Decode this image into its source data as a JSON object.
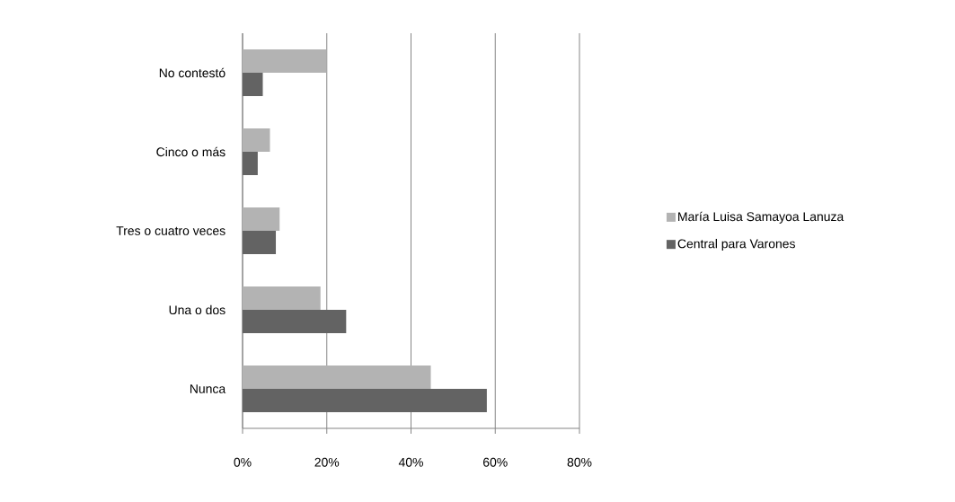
{
  "chart_data": {
    "type": "bar",
    "orientation": "horizontal",
    "categories": [
      "No contestó",
      "Cinco o más",
      "Tres o cuatro veces",
      "Una o dos",
      "Nunca"
    ],
    "series": [
      {
        "name": "María Luisa Samayoa  Lanuza",
        "color": "#b3b3b3",
        "values": [
          19.9,
          6.5,
          8.8,
          18.5,
          44.7
        ]
      },
      {
        "name": "Central para Varones",
        "color": "#636363",
        "values": [
          4.8,
          3.6,
          7.9,
          24.6,
          58.0
        ]
      }
    ],
    "xlim": [
      0,
      80
    ],
    "xticks": [
      {
        "value": 0,
        "label": "0%"
      },
      {
        "value": 20,
        "label": "20%"
      },
      {
        "value": 40,
        "label": "40%"
      },
      {
        "value": 60,
        "label": "60%"
      },
      {
        "value": 80,
        "label": "80%"
      }
    ],
    "grid": "x",
    "legend": "right"
  }
}
